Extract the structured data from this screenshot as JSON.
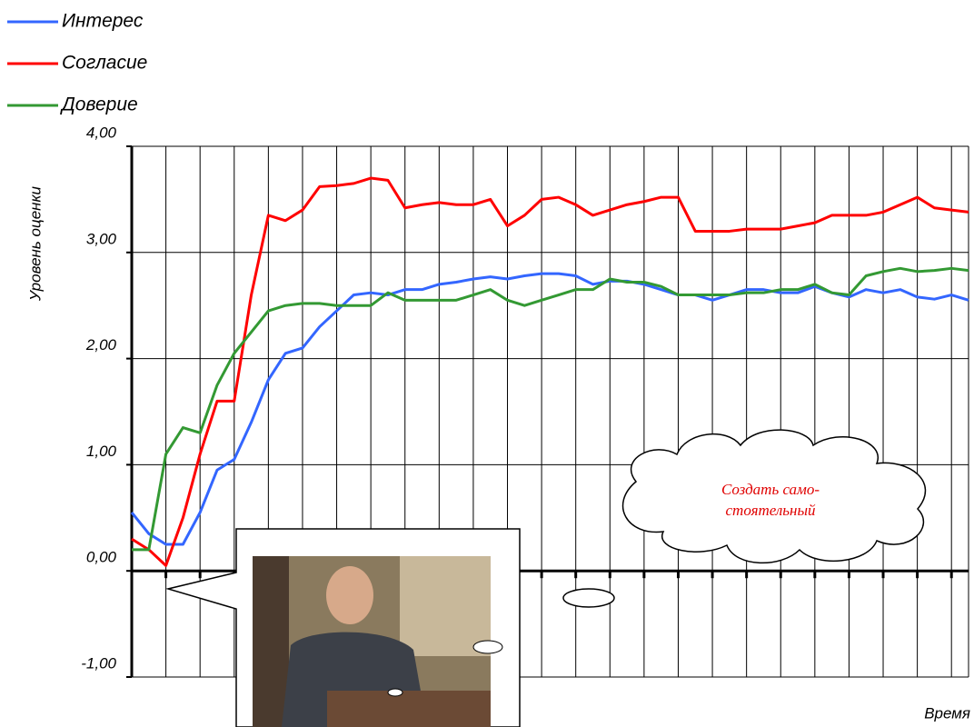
{
  "chart_data": {
    "type": "line",
    "y_label": "Уровень оценки",
    "x_label": "Время",
    "annotation": [
      "Создать само-",
      "стоятельный"
    ],
    "categories": [
      null,
      null,
      null,
      null,
      null,
      null,
      null,
      null,
      null,
      null,
      null,
      null,
      null,
      null,
      null,
      null,
      null,
      null,
      null,
      null,
      null,
      null,
      null,
      null,
      null,
      null,
      null,
      null,
      null,
      null,
      null,
      null,
      null,
      null,
      null,
      null,
      null,
      null,
      null,
      null,
      null,
      null,
      null,
      null,
      null,
      null,
      null,
      null,
      null,
      null
    ],
    "ylim": [
      -1,
      4
    ],
    "yticks": [
      {
        "value": -1,
        "label": "-1,00"
      },
      {
        "value": 0,
        "label": "0,00"
      },
      {
        "value": 1,
        "label": "1,00"
      },
      {
        "value": 2,
        "label": "2,00"
      },
      {
        "value": 3,
        "label": "3,00"
      },
      {
        "value": 4,
        "label": "4,00"
      }
    ],
    "grid": true,
    "series": [
      {
        "name": "Интерес",
        "color": "#3366ff",
        "values": [
          0.55,
          0.35,
          0.25,
          0.25,
          0.55,
          0.95,
          1.05,
          1.4,
          1.8,
          2.05,
          2.1,
          2.3,
          2.45,
          2.6,
          2.62,
          2.6,
          2.65,
          2.65,
          2.7,
          2.72,
          2.75,
          2.77,
          2.75,
          2.78,
          2.8,
          2.8,
          2.78,
          2.7,
          2.73,
          2.73,
          2.7,
          2.65,
          2.6,
          2.6,
          2.55,
          2.6,
          2.65,
          2.65,
          2.62,
          2.62,
          2.68,
          2.62,
          2.58,
          2.65,
          2.62,
          2.65,
          2.58,
          2.56,
          2.6,
          2.55
        ]
      },
      {
        "name": "Согласие",
        "color": "#ff0000",
        "values": [
          0.3,
          0.2,
          0.05,
          0.5,
          1.1,
          1.6,
          1.6,
          2.6,
          3.35,
          3.3,
          3.4,
          3.62,
          3.63,
          3.65,
          3.7,
          3.68,
          3.42,
          3.45,
          3.47,
          3.45,
          3.45,
          3.5,
          3.25,
          3.35,
          3.5,
          3.52,
          3.45,
          3.35,
          3.4,
          3.45,
          3.48,
          3.52,
          3.52,
          3.2,
          3.2,
          3.2,
          3.22,
          3.22,
          3.22,
          3.25,
          3.28,
          3.35,
          3.35,
          3.35,
          3.38,
          3.45,
          3.52,
          3.42,
          3.4,
          3.38
        ]
      },
      {
        "name": "Доверие",
        "color": "#339933",
        "values": [
          0.2,
          0.2,
          1.1,
          1.35,
          1.3,
          1.75,
          2.05,
          2.25,
          2.45,
          2.5,
          2.52,
          2.52,
          2.5,
          2.5,
          2.5,
          2.62,
          2.55,
          2.55,
          2.55,
          2.55,
          2.6,
          2.65,
          2.55,
          2.5,
          2.55,
          2.6,
          2.65,
          2.65,
          2.75,
          2.72,
          2.72,
          2.68,
          2.6,
          2.6,
          2.6,
          2.6,
          2.62,
          2.62,
          2.65,
          2.65,
          2.7,
          2.62,
          2.6,
          2.78,
          2.82,
          2.85,
          2.82,
          2.83,
          2.85,
          2.83
        ]
      }
    ]
  }
}
